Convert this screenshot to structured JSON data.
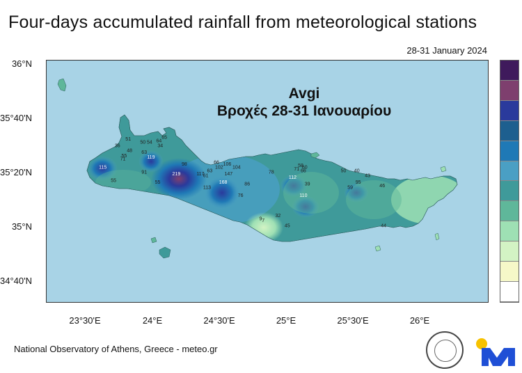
{
  "title": "Four-days accumulated rainfall from meteorological stations",
  "date_range": "28-31 January 2024",
  "overlay": {
    "line1": "Avgi",
    "line2": "Βροχές 28-31 Ιανουαρίου"
  },
  "axes": {
    "y_ticks": [
      "36°N",
      "35°40'N",
      "35°20'N",
      "35°N",
      "34°40'N"
    ],
    "x_ticks": [
      "23°30'E",
      "24°E",
      "24°30'E",
      "25°E",
      "25°30'E",
      "26°E"
    ]
  },
  "legend_colors": [
    "#3f1a5c",
    "#7e3f6e",
    "#2a3a9c",
    "#1d5f8f",
    "#1f79b6",
    "#4a9fc4",
    "#3f9a9a",
    "#5fb79a",
    "#9ee0b4",
    "#d3f3c4",
    "#f6f8c8",
    "#ffffff"
  ],
  "stations": [
    {
      "label": "115",
      "lon": 23.62,
      "lat": 35.35,
      "light": true
    },
    {
      "label": "55",
      "lon": 23.7,
      "lat": 35.27
    },
    {
      "label": "36",
      "lon": 23.73,
      "lat": 35.48
    },
    {
      "label": "51",
      "lon": 23.81,
      "lat": 35.52
    },
    {
      "label": "48",
      "lon": 23.82,
      "lat": 35.45
    },
    {
      "label": "55",
      "lon": 23.78,
      "lat": 35.42
    },
    {
      "label": "71",
      "lon": 23.77,
      "lat": 35.4
    },
    {
      "label": "50",
      "lon": 23.92,
      "lat": 35.5
    },
    {
      "label": "63",
      "lon": 23.93,
      "lat": 35.44
    },
    {
      "label": "54",
      "lon": 23.97,
      "lat": 35.5
    },
    {
      "label": "34",
      "lon": 24.05,
      "lat": 35.48
    },
    {
      "label": "64",
      "lon": 24.04,
      "lat": 35.51
    },
    {
      "label": "65",
      "lon": 24.08,
      "lat": 35.53
    },
    {
      "label": "119",
      "lon": 23.98,
      "lat": 35.41,
      "light": true
    },
    {
      "label": "91",
      "lon": 23.93,
      "lat": 35.32
    },
    {
      "label": "55",
      "lon": 24.03,
      "lat": 35.26
    },
    {
      "label": "98",
      "lon": 24.23,
      "lat": 35.37
    },
    {
      "label": "219",
      "lon": 24.17,
      "lat": 35.31,
      "light": true
    },
    {
      "label": "117",
      "lon": 24.35,
      "lat": 35.31
    },
    {
      "label": "61",
      "lon": 24.39,
      "lat": 35.3
    },
    {
      "label": "63",
      "lon": 24.42,
      "lat": 35.33
    },
    {
      "label": "66",
      "lon": 24.47,
      "lat": 35.38
    },
    {
      "label": "102",
      "lon": 24.49,
      "lat": 35.35
    },
    {
      "label": "106",
      "lon": 24.55,
      "lat": 35.37
    },
    {
      "label": "104",
      "lon": 24.62,
      "lat": 35.35
    },
    {
      "label": "147",
      "lon": 24.56,
      "lat": 35.31
    },
    {
      "label": "168",
      "lon": 24.52,
      "lat": 35.26,
      "light": true
    },
    {
      "label": "113",
      "lon": 24.4,
      "lat": 35.23
    },
    {
      "label": "86",
      "lon": 24.7,
      "lat": 35.25
    },
    {
      "label": "76",
      "lon": 24.65,
      "lat": 35.18
    },
    {
      "label": "78",
      "lon": 24.88,
      "lat": 35.32
    },
    {
      "label": "112",
      "lon": 25.04,
      "lat": 35.29,
      "light": true
    },
    {
      "label": "71",
      "lon": 25.07,
      "lat": 35.34
    },
    {
      "label": "58",
      "lon": 25.1,
      "lat": 35.36
    },
    {
      "label": "60",
      "lon": 25.13,
      "lat": 35.35
    },
    {
      "label": "66",
      "lon": 25.12,
      "lat": 35.33
    },
    {
      "label": "39",
      "lon": 25.15,
      "lat": 35.25
    },
    {
      "label": "110",
      "lon": 25.12,
      "lat": 35.18,
      "light": true
    },
    {
      "label": "50",
      "lon": 25.42,
      "lat": 35.33
    },
    {
      "label": "40",
      "lon": 25.52,
      "lat": 35.33
    },
    {
      "label": "43",
      "lon": 25.6,
      "lat": 35.3
    },
    {
      "label": "95",
      "lon": 25.53,
      "lat": 35.26
    },
    {
      "label": "59",
      "lon": 25.47,
      "lat": 35.23
    },
    {
      "label": "46",
      "lon": 25.71,
      "lat": 35.24
    },
    {
      "label": "44",
      "lon": 25.72,
      "lat": 35.0
    },
    {
      "label": "32",
      "lon": 24.93,
      "lat": 35.06
    },
    {
      "label": "9",
      "lon": 24.8,
      "lat": 35.04
    },
    {
      "label": "7",
      "lon": 24.82,
      "lat": 35.03
    },
    {
      "label": "45",
      "lon": 25.0,
      "lat": 35.0
    }
  ],
  "footer": "National Observatory of Athens, Greece - meteo.gr"
}
